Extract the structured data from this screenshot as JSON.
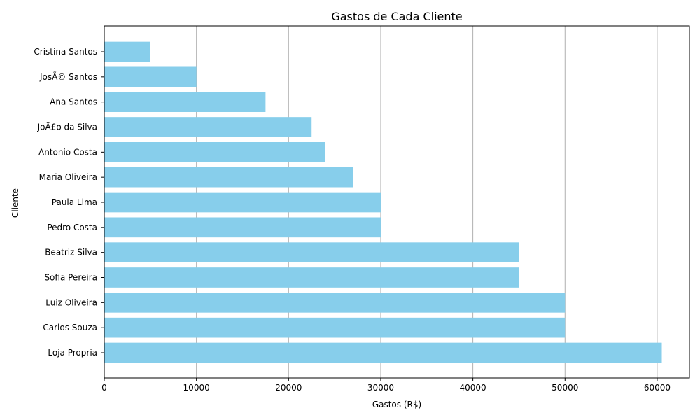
{
  "chart_data": {
    "type": "bar",
    "orientation": "horizontal",
    "title": "Gastos de Cada Cliente",
    "xlabel": "Gastos (R$)",
    "ylabel": "Cliente",
    "xlim": [
      0,
      63500
    ],
    "xticks": [
      0,
      10000,
      20000,
      30000,
      40000,
      50000,
      60000
    ],
    "xtick_labels": [
      "0",
      "10000",
      "20000",
      "30000",
      "40000",
      "50000",
      "60000"
    ],
    "grid": "x",
    "bar_color": "#87ceeb",
    "categories": [
      "Loja Propria",
      "Carlos Souza",
      "Luiz Oliveira",
      "Sofia Pereira",
      "Beatriz Silva",
      "Pedro Costa",
      "Paula Lima",
      "Maria Oliveira",
      "Antonio Costa",
      "JoÃ£o da Silva",
      "Ana Santos",
      "JosÃ© Santos",
      "Cristina Santos"
    ],
    "values": [
      60500,
      50000,
      50000,
      45000,
      45000,
      30000,
      30000,
      27000,
      24000,
      22500,
      17500,
      10000,
      5000
    ]
  }
}
